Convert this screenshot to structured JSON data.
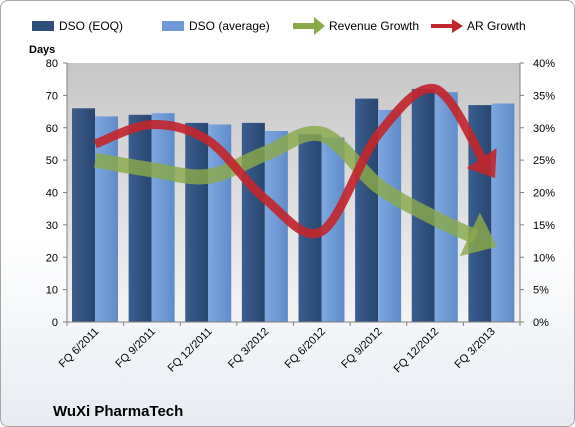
{
  "chart_data": {
    "type": "bar",
    "company": "WuXi PharmaTech",
    "ylabel": "Days",
    "categories": [
      "FQ 6/2011",
      "FQ 9/2011",
      "FQ 12/2011",
      "FQ 3/2012",
      "FQ 6/2012",
      "FQ 9/2012",
      "FQ 12/2012",
      "FQ 3/2013"
    ],
    "series": [
      {
        "name": "DSO (EOQ)",
        "kind": "bar",
        "axis": "left",
        "color": "#2e4f7c",
        "values": [
          66,
          64,
          61.5,
          61.5,
          58,
          69,
          72,
          67
        ]
      },
      {
        "name": "DSO (average)",
        "kind": "bar",
        "axis": "left",
        "color": "#6f9ad8",
        "values": [
          63.5,
          64.5,
          61,
          59,
          57,
          65.5,
          71,
          67.5
        ]
      },
      {
        "name": "Revenue Growth",
        "kind": "arrow",
        "axis": "right",
        "color": "#8aaa4a",
        "values": [
          25,
          23.5,
          22.5,
          26,
          29,
          21,
          16,
          12
        ]
      },
      {
        "name": "AR Growth",
        "kind": "arrow",
        "axis": "right",
        "color": "#c1272d",
        "values": [
          27.5,
          30.5,
          28,
          19,
          14,
          29,
          36,
          23
        ]
      }
    ],
    "ylim": [
      0,
      80
    ],
    "yticks": [
      0,
      10,
      20,
      30,
      40,
      50,
      60,
      70,
      80
    ],
    "y2lim": [
      0,
      0.4
    ],
    "y2ticks": [
      "0%",
      "5%",
      "10%",
      "15%",
      "20%",
      "25%",
      "30%",
      "35%",
      "40%"
    ],
    "legend_position": "top",
    "grid": false,
    "plot_background": "#d9d9d9"
  }
}
